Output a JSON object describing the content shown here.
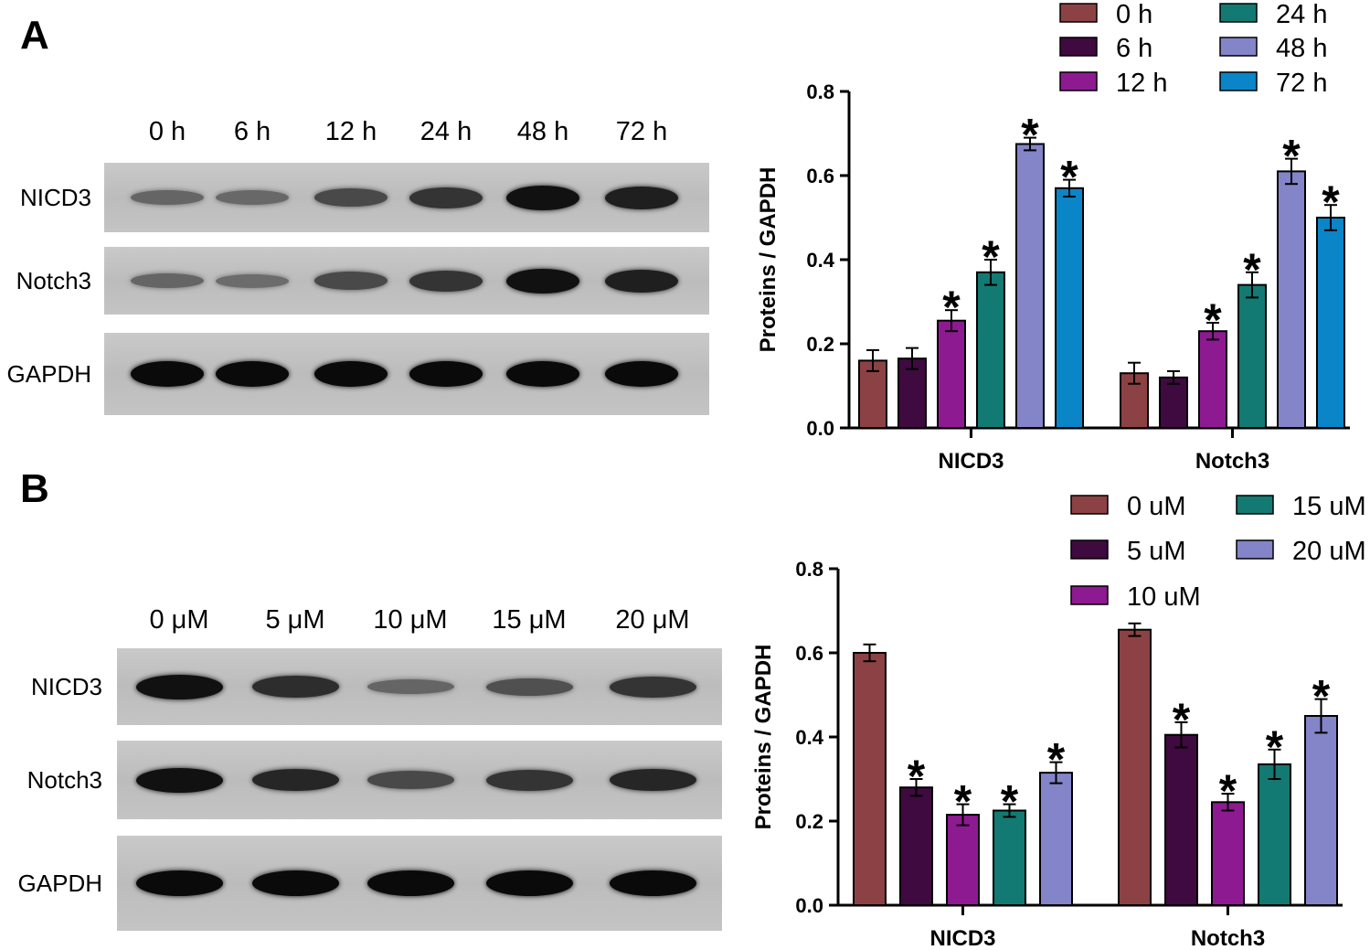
{
  "panels": [
    {
      "letter": "A",
      "blot": {
        "lanes": [
          "0 h",
          "6 h",
          "12 h",
          "24 h",
          "48 h",
          "72 h"
        ],
        "rows": [
          {
            "label": "NICD3",
            "intensity": [
              0.35,
              0.33,
              0.55,
              0.7,
              0.95,
              0.85
            ]
          },
          {
            "label": "Notch3",
            "intensity": [
              0.35,
              0.3,
              0.55,
              0.7,
              0.95,
              0.85
            ]
          },
          {
            "label": "GAPDH",
            "intensity": [
              1,
              1,
              1,
              1,
              1,
              1
            ]
          }
        ]
      },
      "chart_data": {
        "type": "bar",
        "categories": [
          "NICD3",
          "Notch3"
        ],
        "ylabel": "Proteins / GAPDH",
        "ylim": [
          0,
          0.8
        ],
        "yticks": [
          "0.0",
          "0.2",
          "0.4",
          "0.6",
          "0.8"
        ],
        "legend_columns": 2,
        "series": [
          {
            "name": "0 h",
            "color": "#8c4244",
            "values": [
              0.16,
              0.13
            ],
            "errors": [
              0.025,
              0.025
            ],
            "significant": [
              false,
              false
            ]
          },
          {
            "name": "6 h",
            "color": "#3f0a3f",
            "values": [
              0.165,
              0.12
            ],
            "errors": [
              0.025,
              0.015
            ],
            "significant": [
              false,
              false
            ]
          },
          {
            "name": "12 h",
            "color": "#8e1a92",
            "values": [
              0.255,
              0.23
            ],
            "errors": [
              0.025,
              0.02
            ],
            "significant": [
              true,
              true
            ]
          },
          {
            "name": "24 h",
            "color": "#127a72",
            "values": [
              0.37,
              0.34
            ],
            "errors": [
              0.03,
              0.03
            ],
            "significant": [
              true,
              true
            ]
          },
          {
            "name": "48 h",
            "color": "#8484c8",
            "values": [
              0.675,
              0.61
            ],
            "errors": [
              0.015,
              0.03
            ],
            "significant": [
              true,
              true
            ]
          },
          {
            "name": "72 h",
            "color": "#0a85c8",
            "values": [
              0.57,
              0.5
            ],
            "errors": [
              0.02,
              0.03
            ],
            "significant": [
              true,
              true
            ]
          }
        ],
        "significance_mark": "*"
      }
    },
    {
      "letter": "B",
      "blot": {
        "lanes": [
          "0 μM",
          "5 μM",
          "10 μM",
          "15 μM",
          "20 μM"
        ],
        "rows": [
          {
            "label": "NICD3",
            "intensity": [
              0.95,
              0.75,
              0.35,
              0.5,
              0.7
            ]
          },
          {
            "label": "Notch3",
            "intensity": [
              0.95,
              0.8,
              0.55,
              0.7,
              0.8
            ]
          },
          {
            "label": "GAPDH",
            "intensity": [
              1,
              1,
              1,
              1,
              1
            ]
          }
        ]
      },
      "chart_data": {
        "type": "bar",
        "categories": [
          "NICD3",
          "Notch3"
        ],
        "ylabel": "Proteins / GAPDH",
        "ylim": [
          0,
          0.8
        ],
        "yticks": [
          "0.0",
          "0.2",
          "0.4",
          "0.6",
          "0.8"
        ],
        "legend_columns": 2,
        "series": [
          {
            "name": "0 uM",
            "color": "#8c4244",
            "values": [
              0.6,
              0.655
            ],
            "errors": [
              0.02,
              0.015
            ],
            "significant": [
              false,
              false
            ]
          },
          {
            "name": "5 uM",
            "color": "#3f0a3f",
            "values": [
              0.28,
              0.405
            ],
            "errors": [
              0.02,
              0.03
            ],
            "significant": [
              true,
              true
            ]
          },
          {
            "name": "10 uM",
            "color": "#8e1a92",
            "values": [
              0.215,
              0.245
            ],
            "errors": [
              0.025,
              0.02
            ],
            "significant": [
              true,
              true
            ]
          },
          {
            "name": "15 uM",
            "color": "#127a72",
            "values": [
              0.225,
              0.335
            ],
            "errors": [
              0.015,
              0.035
            ],
            "significant": [
              true,
              true
            ]
          },
          {
            "name": "20 uM",
            "color": "#8484c8",
            "values": [
              0.315,
              0.45
            ],
            "errors": [
              0.025,
              0.04
            ],
            "significant": [
              true,
              true
            ]
          }
        ],
        "significance_mark": "*"
      }
    }
  ]
}
